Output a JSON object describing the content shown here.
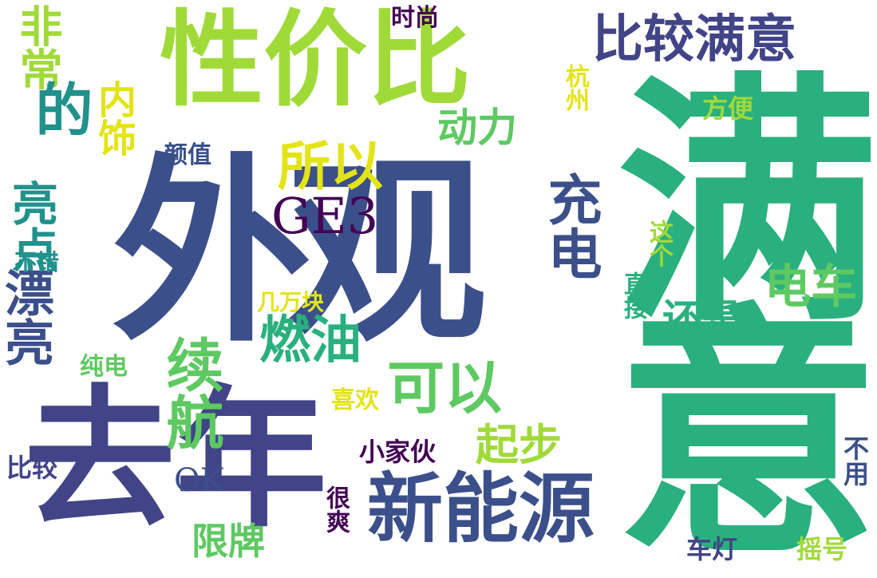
{
  "palette": {
    "background": "#ffffff",
    "dark_purple": "#440154",
    "indigo": "#3b4f8a",
    "deep_blue": "#414487",
    "teal": "#21918c",
    "green_teal": "#2ab07f",
    "green": "#5ec962",
    "lime": "#a0da39",
    "yellow_green": "#c8e020",
    "yellow": "#e3e418"
  },
  "words": [
    "外观",
    "满意",
    "性价比",
    "去年",
    "新能源",
    "比较满意",
    "GE3",
    "充电",
    "可以",
    "电车",
    "续航",
    "燃油",
    "所以",
    "漂亮",
    "亮点",
    "动力",
    "起步",
    "还是",
    "非常",
    "时尚",
    "杭州",
    "方便",
    "颜值",
    "不错",
    "几万块",
    "纯电",
    "喜欢",
    "小家伙",
    "OK",
    "比较",
    "限牌",
    "很爽",
    "车灯",
    "摇号",
    "不用",
    "直接",
    "这个",
    "内饰",
    "的"
  ]
}
